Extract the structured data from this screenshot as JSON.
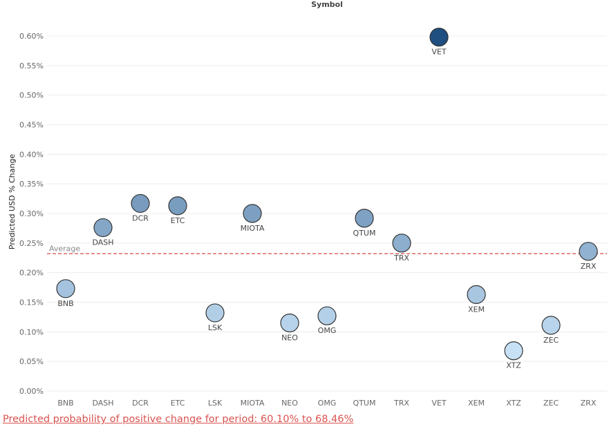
{
  "chart_data": {
    "type": "scatter",
    "title": "Symbol",
    "xlabel": "",
    "ylabel": "Predicted USD % Change",
    "categories": [
      "BNB",
      "DASH",
      "DCR",
      "ETC",
      "LSK",
      "MIOTA",
      "NEO",
      "OMG",
      "QTUM",
      "TRX",
      "VET",
      "XEM",
      "XTZ",
      "ZEC",
      "ZRX"
    ],
    "values": [
      0.173,
      0.276,
      0.317,
      0.313,
      0.132,
      0.3,
      0.115,
      0.127,
      0.292,
      0.25,
      0.598,
      0.163,
      0.068,
      0.111,
      0.236
    ],
    "yticks": [
      "0.00%",
      "0.05%",
      "0.10%",
      "0.15%",
      "0.20%",
      "0.25%",
      "0.30%",
      "0.35%",
      "0.40%",
      "0.45%",
      "0.50%",
      "0.55%",
      "0.60%"
    ],
    "ylim": [
      0,
      0.6
    ],
    "grid": true,
    "reference_line": {
      "label": "Average",
      "value": 0.232,
      "color": "#e06666"
    },
    "color_scale": {
      "low": "#c6e0f5",
      "high": "#1f4e80"
    },
    "label_position": [
      "below",
      "below",
      "below",
      "below",
      "below",
      "below",
      "below",
      "below",
      "below",
      "below",
      "below",
      "below",
      "below",
      "below",
      "below"
    ]
  },
  "footer": {
    "text": "Predicted probability of positive change for period:  60.10% to 68.46%",
    "color": "#d9534f"
  }
}
